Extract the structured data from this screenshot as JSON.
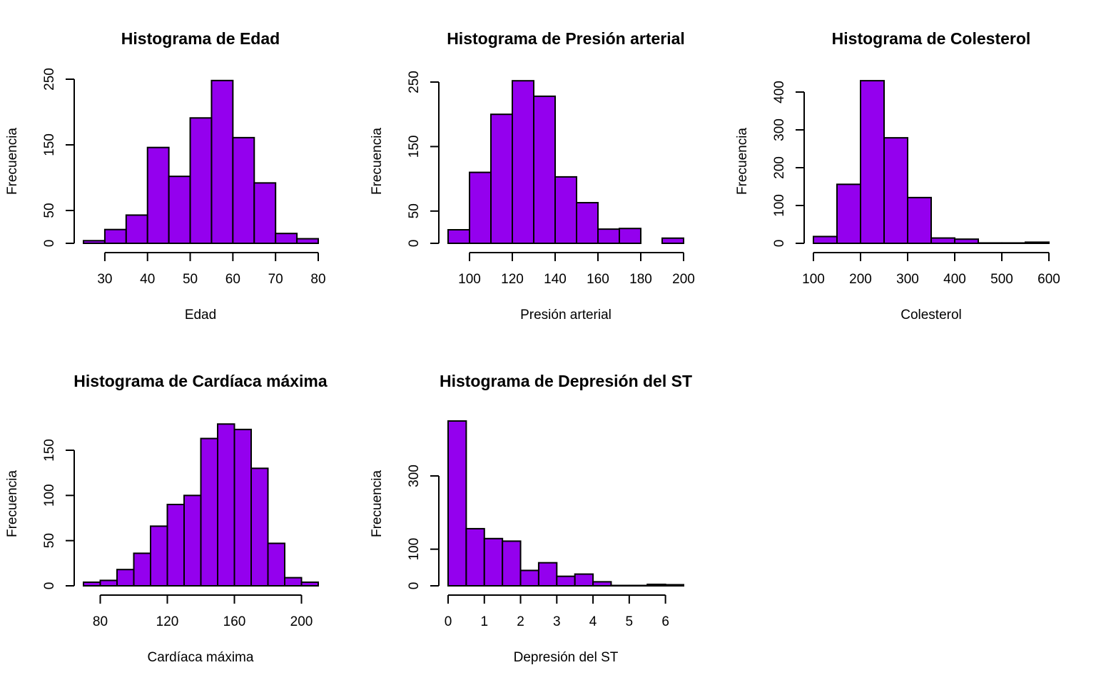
{
  "chart_data": [
    {
      "type": "bar",
      "title": "Histograma de Edad",
      "xlabel": "Edad",
      "ylabel": "Frecuencia",
      "bin_edges": [
        25,
        30,
        35,
        40,
        45,
        50,
        55,
        60,
        65,
        70,
        75,
        80
      ],
      "values": [
        4,
        21,
        43,
        146,
        102,
        191,
        248,
        161,
        92,
        15,
        7
      ],
      "xticks": [
        30,
        40,
        50,
        60,
        70,
        80
      ],
      "xlim": [
        30,
        80
      ],
      "yticks": [
        0,
        50,
        150,
        250
      ],
      "ylim": [
        0,
        250
      ],
      "color": "#9400EE"
    },
    {
      "type": "bar",
      "title": "Histograma de Presión arterial",
      "xlabel": "Presión arterial",
      "ylabel": "Frecuencia",
      "bin_edges": [
        90,
        100,
        110,
        120,
        130,
        140,
        150,
        160,
        170,
        180,
        190,
        200
      ],
      "values": [
        21,
        110,
        200,
        252,
        228,
        103,
        63,
        22,
        23,
        0,
        8
      ],
      "xticks": [
        100,
        120,
        140,
        160,
        180,
        200
      ],
      "xlim": [
        100,
        200
      ],
      "yticks": [
        0,
        50,
        150,
        250
      ],
      "ylim": [
        0,
        250
      ],
      "color": "#9400EE"
    },
    {
      "type": "bar",
      "title": "Histograma de Colesterol",
      "xlabel": "Colesterol",
      "ylabel": "Frecuencia",
      "bin_edges": [
        100,
        150,
        200,
        250,
        300,
        350,
        400,
        450,
        500,
        550,
        600
      ],
      "values": [
        18,
        156,
        430,
        279,
        121,
        14,
        11,
        1,
        1,
        3
      ],
      "xticks": [
        100,
        200,
        300,
        400,
        500,
        600
      ],
      "xlim": [
        100,
        600
      ],
      "yticks": [
        0,
        100,
        200,
        300,
        400
      ],
      "ylim": [
        0,
        400
      ],
      "color": "#9400EE"
    },
    {
      "type": "bar",
      "title": "Histograma de Cardíaca máxima",
      "xlabel": "Cardíaca máxima",
      "ylabel": "Frecuencia",
      "bin_edges": [
        70,
        80,
        90,
        100,
        110,
        120,
        130,
        140,
        150,
        160,
        170,
        180,
        190,
        200,
        210
      ],
      "values": [
        4,
        6,
        18,
        36,
        66,
        90,
        100,
        163,
        179,
        173,
        130,
        47,
        9,
        4
      ],
      "xticks": [
        80,
        120,
        160,
        200
      ],
      "xlim": [
        80,
        200
      ],
      "yticks": [
        0,
        50,
        100,
        150
      ],
      "ylim": [
        0,
        150
      ],
      "color": "#9400EE"
    },
    {
      "type": "bar",
      "title": "Histograma de Depresión del ST",
      "xlabel": "Depresión del ST",
      "ylabel": "Frecuencia",
      "bin_edges": [
        0,
        0.5,
        1,
        1.5,
        2,
        2.5,
        3,
        3.5,
        4,
        4.5,
        5,
        5.5,
        6,
        6.5
      ],
      "values": [
        450,
        156,
        129,
        122,
        42,
        63,
        26,
        32,
        11,
        1,
        1,
        4,
        3
      ],
      "xticks": [
        0,
        1,
        2,
        3,
        4,
        5,
        6
      ],
      "xlim": [
        0,
        6
      ],
      "yticks": [
        0,
        100,
        300
      ],
      "ylim": [
        0,
        300
      ],
      "color": "#9400EE"
    }
  ]
}
